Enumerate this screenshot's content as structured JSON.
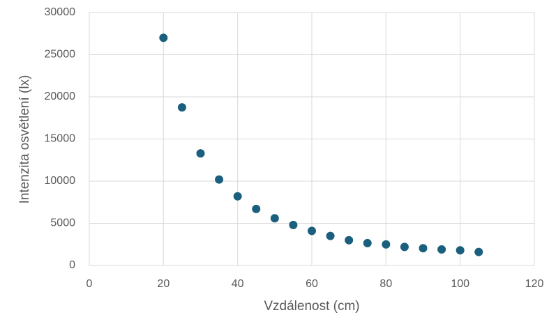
{
  "chart_data": {
    "type": "scatter",
    "x_label": "Vzdálenost (cm)",
    "y_label": "Intenzita osvětlení (lx)",
    "x": [
      20,
      25,
      30,
      35,
      40,
      45,
      50,
      55,
      60,
      65,
      70,
      75,
      80,
      85,
      90,
      95,
      100,
      105
    ],
    "values": [
      27000,
      18750,
      13300,
      10200,
      8200,
      6700,
      5600,
      4800,
      4100,
      3500,
      3000,
      2650,
      2500,
      2200,
      2050,
      1900,
      1800,
      1600
    ],
    "color": "#1a5f7e",
    "xlim": [
      0,
      120
    ],
    "xticks": [
      0,
      20,
      40,
      60,
      80,
      100,
      120
    ],
    "ylim": [
      0,
      30000
    ],
    "yticks": [
      0,
      5000,
      10000,
      15000,
      20000,
      25000,
      30000
    ],
    "grid": true
  }
}
